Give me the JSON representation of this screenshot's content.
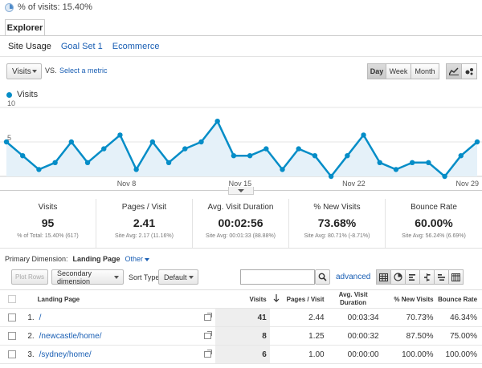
{
  "segment": {
    "label": "% of visits: 15.40%"
  },
  "tabs": {
    "explorer": "Explorer"
  },
  "subtabs": [
    {
      "label": "Site Usage",
      "active": true
    },
    {
      "label": "Goal Set 1",
      "active": false
    },
    {
      "label": "Ecommerce",
      "active": false
    }
  ],
  "toolbar": {
    "metric": "Visits",
    "vs": "VS.",
    "select_metric": "Select a metric",
    "periods": [
      "Day",
      "Week",
      "Month"
    ]
  },
  "legend": {
    "series_name": "Visits",
    "color": "#058dc7"
  },
  "chart_data": {
    "type": "area",
    "series": [
      {
        "name": "Visits",
        "values": [
          5,
          3,
          1,
          2,
          5,
          2,
          4,
          6,
          1,
          5,
          2,
          4,
          5,
          8,
          3,
          3,
          4,
          1,
          4,
          3,
          0,
          3,
          6,
          2,
          1,
          2,
          2,
          0,
          3,
          5
        ]
      }
    ],
    "x_tick_labels": [
      "Nov 8",
      "Nov 15",
      "Nov 22",
      "Nov 29"
    ],
    "x_tick_indices": [
      7,
      14,
      21,
      28
    ],
    "y_tick_labels": [
      "10",
      "5"
    ],
    "ylim": [
      0,
      10
    ],
    "line_color": "#058dc7",
    "fill_color": "#e5f1f9"
  },
  "scorecards": [
    {
      "title": "Visits",
      "value": "95",
      "sub": "% of Total: 15.40% (617)"
    },
    {
      "title": "Pages / Visit",
      "value": "2.41",
      "sub": "Site Avg: 2.17 (11.16%)"
    },
    {
      "title": "Avg. Visit Duration",
      "value": "00:02:56",
      "sub": "Site Avg: 00:01:33 (88.88%)"
    },
    {
      "title": "% New Visits",
      "value": "73.68%",
      "sub": "Site Avg: 80.71% (-8.71%)"
    },
    {
      "title": "Bounce Rate",
      "value": "60.00%",
      "sub": "Site Avg: 56.24% (6.69%)"
    }
  ],
  "primary_dimension": {
    "label": "Primary Dimension:",
    "value": "Landing Page",
    "other": "Other"
  },
  "table_controls": {
    "plot_rows": "Plot Rows",
    "secondary_dimension": "Secondary dimension",
    "sort_type_label": "Sort Type:",
    "sort_type": "Default",
    "search_value": "",
    "advanced": "advanced"
  },
  "table": {
    "headers": {
      "landing_page": "Landing Page",
      "visits": "Visits",
      "pages_per_visit": "Pages / Visit",
      "avg_duration": "Avg. Visit Duration",
      "new_visits": "% New Visits",
      "bounce_rate": "Bounce Rate"
    },
    "rows": [
      {
        "index": "1.",
        "page": "/",
        "visits": "41",
        "ppv": "2.44",
        "duration": "00:03:34",
        "new_visits": "70.73%",
        "bounce": "46.34%"
      },
      {
        "index": "2.",
        "page": "/newcastle/home/",
        "visits": "8",
        "ppv": "1.25",
        "duration": "00:00:32",
        "new_visits": "87.50%",
        "bounce": "75.00%"
      },
      {
        "index": "3.",
        "page": "/sydney/home/",
        "visits": "6",
        "ppv": "1.00",
        "duration": "00:00:00",
        "new_visits": "100.00%",
        "bounce": "100.00%"
      }
    ]
  }
}
